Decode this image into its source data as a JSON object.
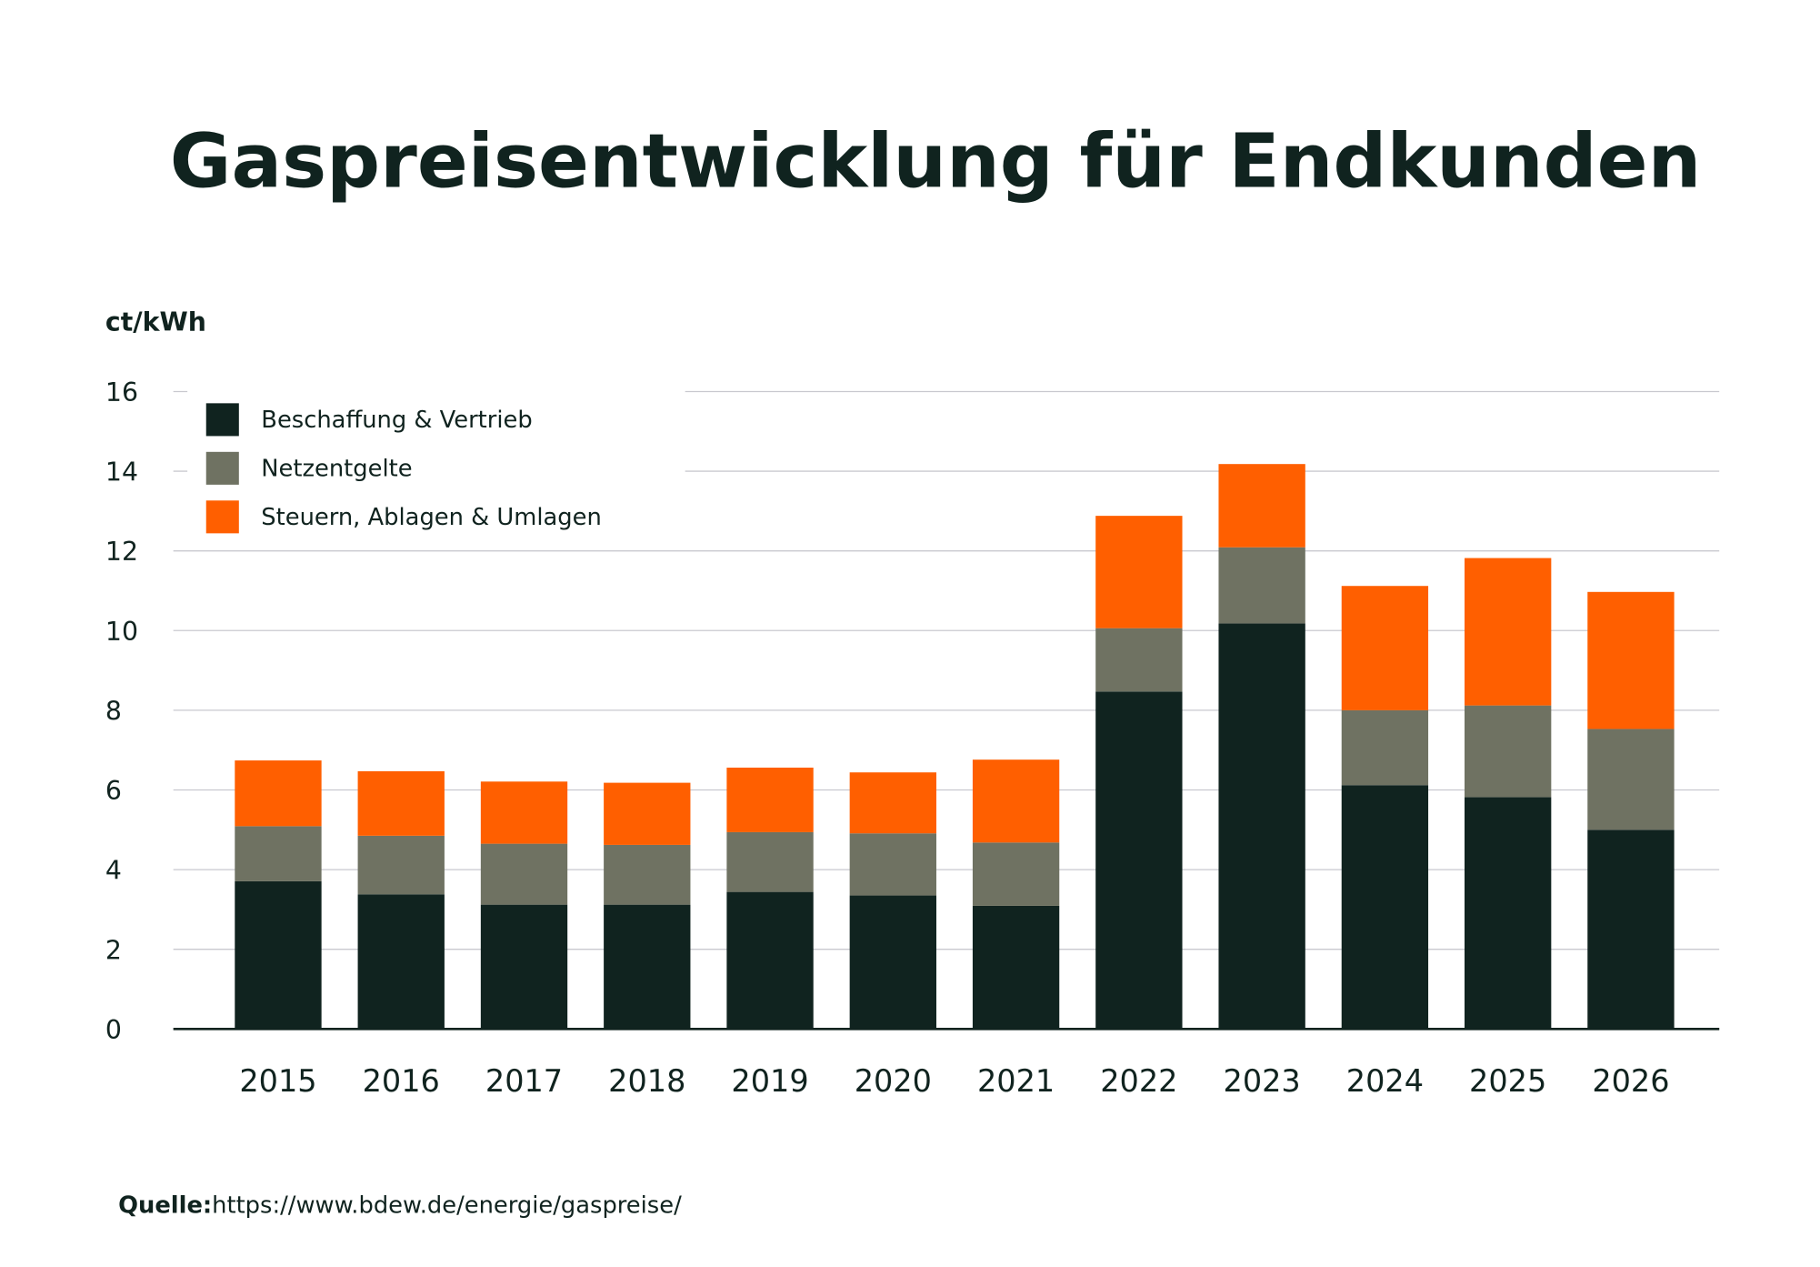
{
  "chart_data": {
    "type": "stacked_bar",
    "title": "Gaspreisentwicklung für Endkunden",
    "y_label": "ct/kWh",
    "source_label": "Quelle:",
    "source": "https://www.bdew.de/energie/gaspreise/",
    "categories": [
      "2015",
      "2016",
      "2017",
      "2018",
      "2019",
      "2020",
      "2021",
      "2022",
      "2023",
      "2024",
      "2025",
      "2026"
    ],
    "series": [
      {
        "name": "Beschaffung & Vertrieb",
        "color": "#10231f",
        "values": [
          3.71,
          3.38,
          3.12,
          3.12,
          3.44,
          3.35,
          3.09,
          8.47,
          10.18,
          6.12,
          5.82,
          5.0
        ]
      },
      {
        "name": "Netzentgelte",
        "color": "#6f7262",
        "values": [
          1.38,
          1.47,
          1.53,
          1.5,
          1.5,
          1.56,
          1.59,
          1.59,
          1.91,
          1.88,
          2.3,
          2.53
        ]
      },
      {
        "name": "Steuern, Ablagen & Umlagen",
        "color": "#ff5f00",
        "values": [
          1.65,
          1.62,
          1.56,
          1.56,
          1.62,
          1.53,
          2.08,
          2.82,
          2.09,
          3.12,
          3.7,
          3.44
        ]
      }
    ],
    "ylim": [
      0,
      16
    ],
    "yticks": [
      0,
      2,
      4,
      6,
      8,
      10,
      12,
      14,
      16
    ],
    "grid": true,
    "legend": "upper-left"
  }
}
